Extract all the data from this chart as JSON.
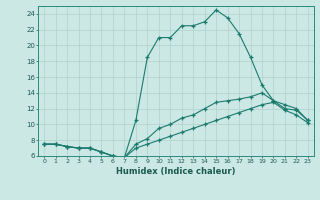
{
  "title": "",
  "xlabel": "Humidex (Indice chaleur)",
  "ylabel": "",
  "bg_color": "#cce8e4",
  "grid_color": "#b0d0cc",
  "line_color": "#1a7a6e",
  "xlim": [
    -0.5,
    23.5
  ],
  "ylim": [
    6,
    25
  ],
  "xticks": [
    0,
    1,
    2,
    3,
    4,
    5,
    6,
    7,
    8,
    9,
    10,
    11,
    12,
    13,
    14,
    15,
    16,
    17,
    18,
    19,
    20,
    21,
    22,
    23
  ],
  "yticks": [
    6,
    8,
    10,
    12,
    14,
    16,
    18,
    20,
    22,
    24
  ],
  "series": [
    {
      "x": [
        0,
        1,
        2,
        3,
        4,
        5,
        6,
        7,
        8,
        9,
        10,
        11,
        12,
        13,
        14,
        15,
        16,
        17,
        18,
        19,
        20,
        21,
        22,
        23
      ],
      "y": [
        7.5,
        7.5,
        7.2,
        7.0,
        7.0,
        6.5,
        6.0,
        5.8,
        10.5,
        18.5,
        21.0,
        21.0,
        22.5,
        22.5,
        23.0,
        24.5,
        23.5,
        21.5,
        18.5,
        15.0,
        13.0,
        12.5,
        12.0,
        10.5
      ]
    },
    {
      "x": [
        0,
        1,
        2,
        3,
        4,
        5,
        6,
        7,
        8,
        9,
        10,
        11,
        12,
        13,
        14,
        15,
        16,
        17,
        18,
        19,
        20,
        21,
        22,
        23
      ],
      "y": [
        7.5,
        7.5,
        7.2,
        7.0,
        7.0,
        6.5,
        6.0,
        5.8,
        7.5,
        8.2,
        9.5,
        10.0,
        10.8,
        11.2,
        12.0,
        12.8,
        13.0,
        13.2,
        13.5,
        14.0,
        13.0,
        12.0,
        11.8,
        10.5
      ]
    },
    {
      "x": [
        0,
        1,
        2,
        3,
        4,
        5,
        6,
        7,
        8,
        9,
        10,
        11,
        12,
        13,
        14,
        15,
        16,
        17,
        18,
        19,
        20,
        21,
        22,
        23
      ],
      "y": [
        7.5,
        7.5,
        7.2,
        7.0,
        7.0,
        6.5,
        6.0,
        5.8,
        7.0,
        7.5,
        8.0,
        8.5,
        9.0,
        9.5,
        10.0,
        10.5,
        11.0,
        11.5,
        12.0,
        12.5,
        12.8,
        11.8,
        11.2,
        10.2
      ]
    }
  ]
}
